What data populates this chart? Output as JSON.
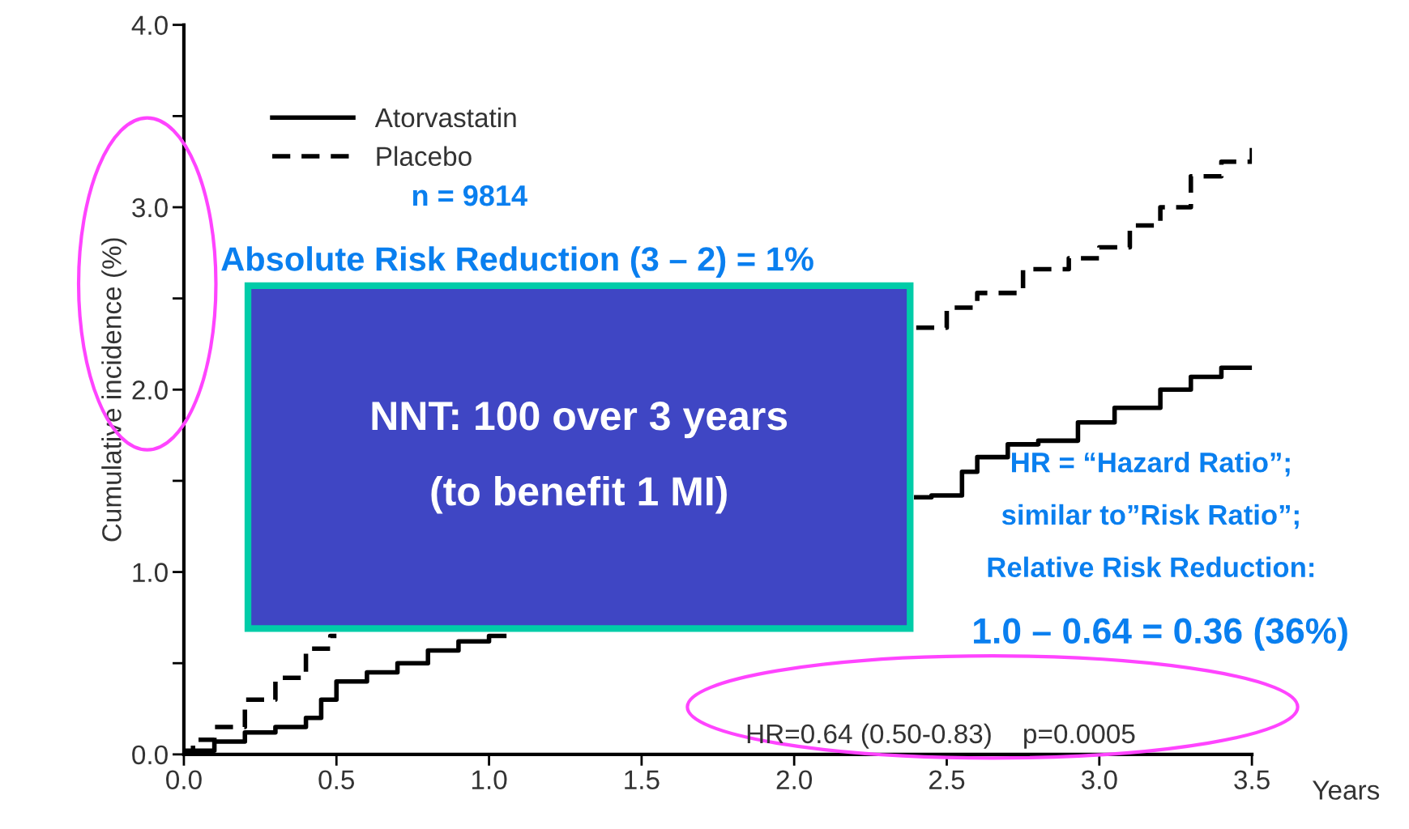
{
  "chart_data": {
    "type": "step",
    "ylabel": "Cumulative incidence (%)",
    "xlabel": "Years",
    "xlim": [
      0,
      3.5
    ],
    "ylim": [
      0,
      4.0
    ],
    "xticks": [
      {
        "value": 0,
        "label": "0.0"
      },
      {
        "value": 0.5,
        "label": "0.5"
      },
      {
        "value": 1.0,
        "label": "1.0"
      },
      {
        "value": 1.5,
        "label": "1.5"
      },
      {
        "value": 2.0,
        "label": "2.0"
      },
      {
        "value": 2.5,
        "label": "2.5"
      },
      {
        "value": 3.0,
        "label": "3.0"
      },
      {
        "value": 3.5,
        "label": "3.5"
      }
    ],
    "yticks": [
      {
        "value": 0,
        "label": "0.0"
      },
      {
        "value": 0.5,
        "label": null
      },
      {
        "value": 1.0,
        "label": "1.0"
      },
      {
        "value": 1.5,
        "label": null
      },
      {
        "value": 2.0,
        "label": "2.0"
      },
      {
        "value": 2.5,
        "label": null
      },
      {
        "value": 3.0,
        "label": "3.0"
      },
      {
        "value": 3.5,
        "label": null
      },
      {
        "value": 4.0,
        "label": "4.0"
      }
    ],
    "grid": false,
    "legend": "top left",
    "series": [
      {
        "name": "Atorvastatin",
        "color": "#000000",
        "line_style": "solid",
        "x": [
          0,
          0.1,
          0.2,
          0.3,
          0.4,
          0.45,
          0.5,
          0.6,
          0.7,
          0.8,
          0.9,
          1.0,
          1.05,
          2.4,
          2.45,
          2.55,
          2.6,
          2.7,
          2.8,
          2.93,
          3.05,
          3.2,
          3.3,
          3.4,
          3.5
        ],
        "values": [
          0.02,
          0.07,
          0.12,
          0.15,
          0.2,
          0.3,
          0.4,
          0.45,
          0.5,
          0.57,
          0.62,
          0.65,
          null,
          1.41,
          1.42,
          1.55,
          1.63,
          1.7,
          1.72,
          1.82,
          1.9,
          2.0,
          2.07,
          2.12,
          2.12
        ]
      },
      {
        "name": "Placebo",
        "color": "#000000",
        "line_style": "dashed",
        "x": [
          0,
          0.03,
          0.1,
          0.2,
          0.3,
          0.4,
          0.48,
          0.5,
          2.4,
          2.5,
          2.6,
          2.75,
          2.9,
          3.0,
          3.1,
          3.2,
          3.3,
          3.4,
          3.5
        ],
        "values": [
          0.0,
          0.08,
          0.15,
          0.3,
          0.42,
          0.58,
          0.65,
          null,
          2.34,
          2.45,
          2.53,
          2.66,
          2.72,
          2.78,
          2.9,
          3.0,
          3.17,
          3.25,
          3.35
        ]
      }
    ],
    "annotations": [
      "n = 9814",
      "Absolute Risk Reduction (3 – 2) = 1%",
      "NNT: 100 over 3 years\n\n(to benefit 1 MI)",
      "HR = “Hazard Ratio”;\n\nsimilar to”Risk Ratio”;\n\nRelative Risk Reduction:",
      "1.0 – 0.64 = 0.36 (36%)",
      "HR=0.64 (0.50-0.83)    p=0.0005"
    ]
  }
}
